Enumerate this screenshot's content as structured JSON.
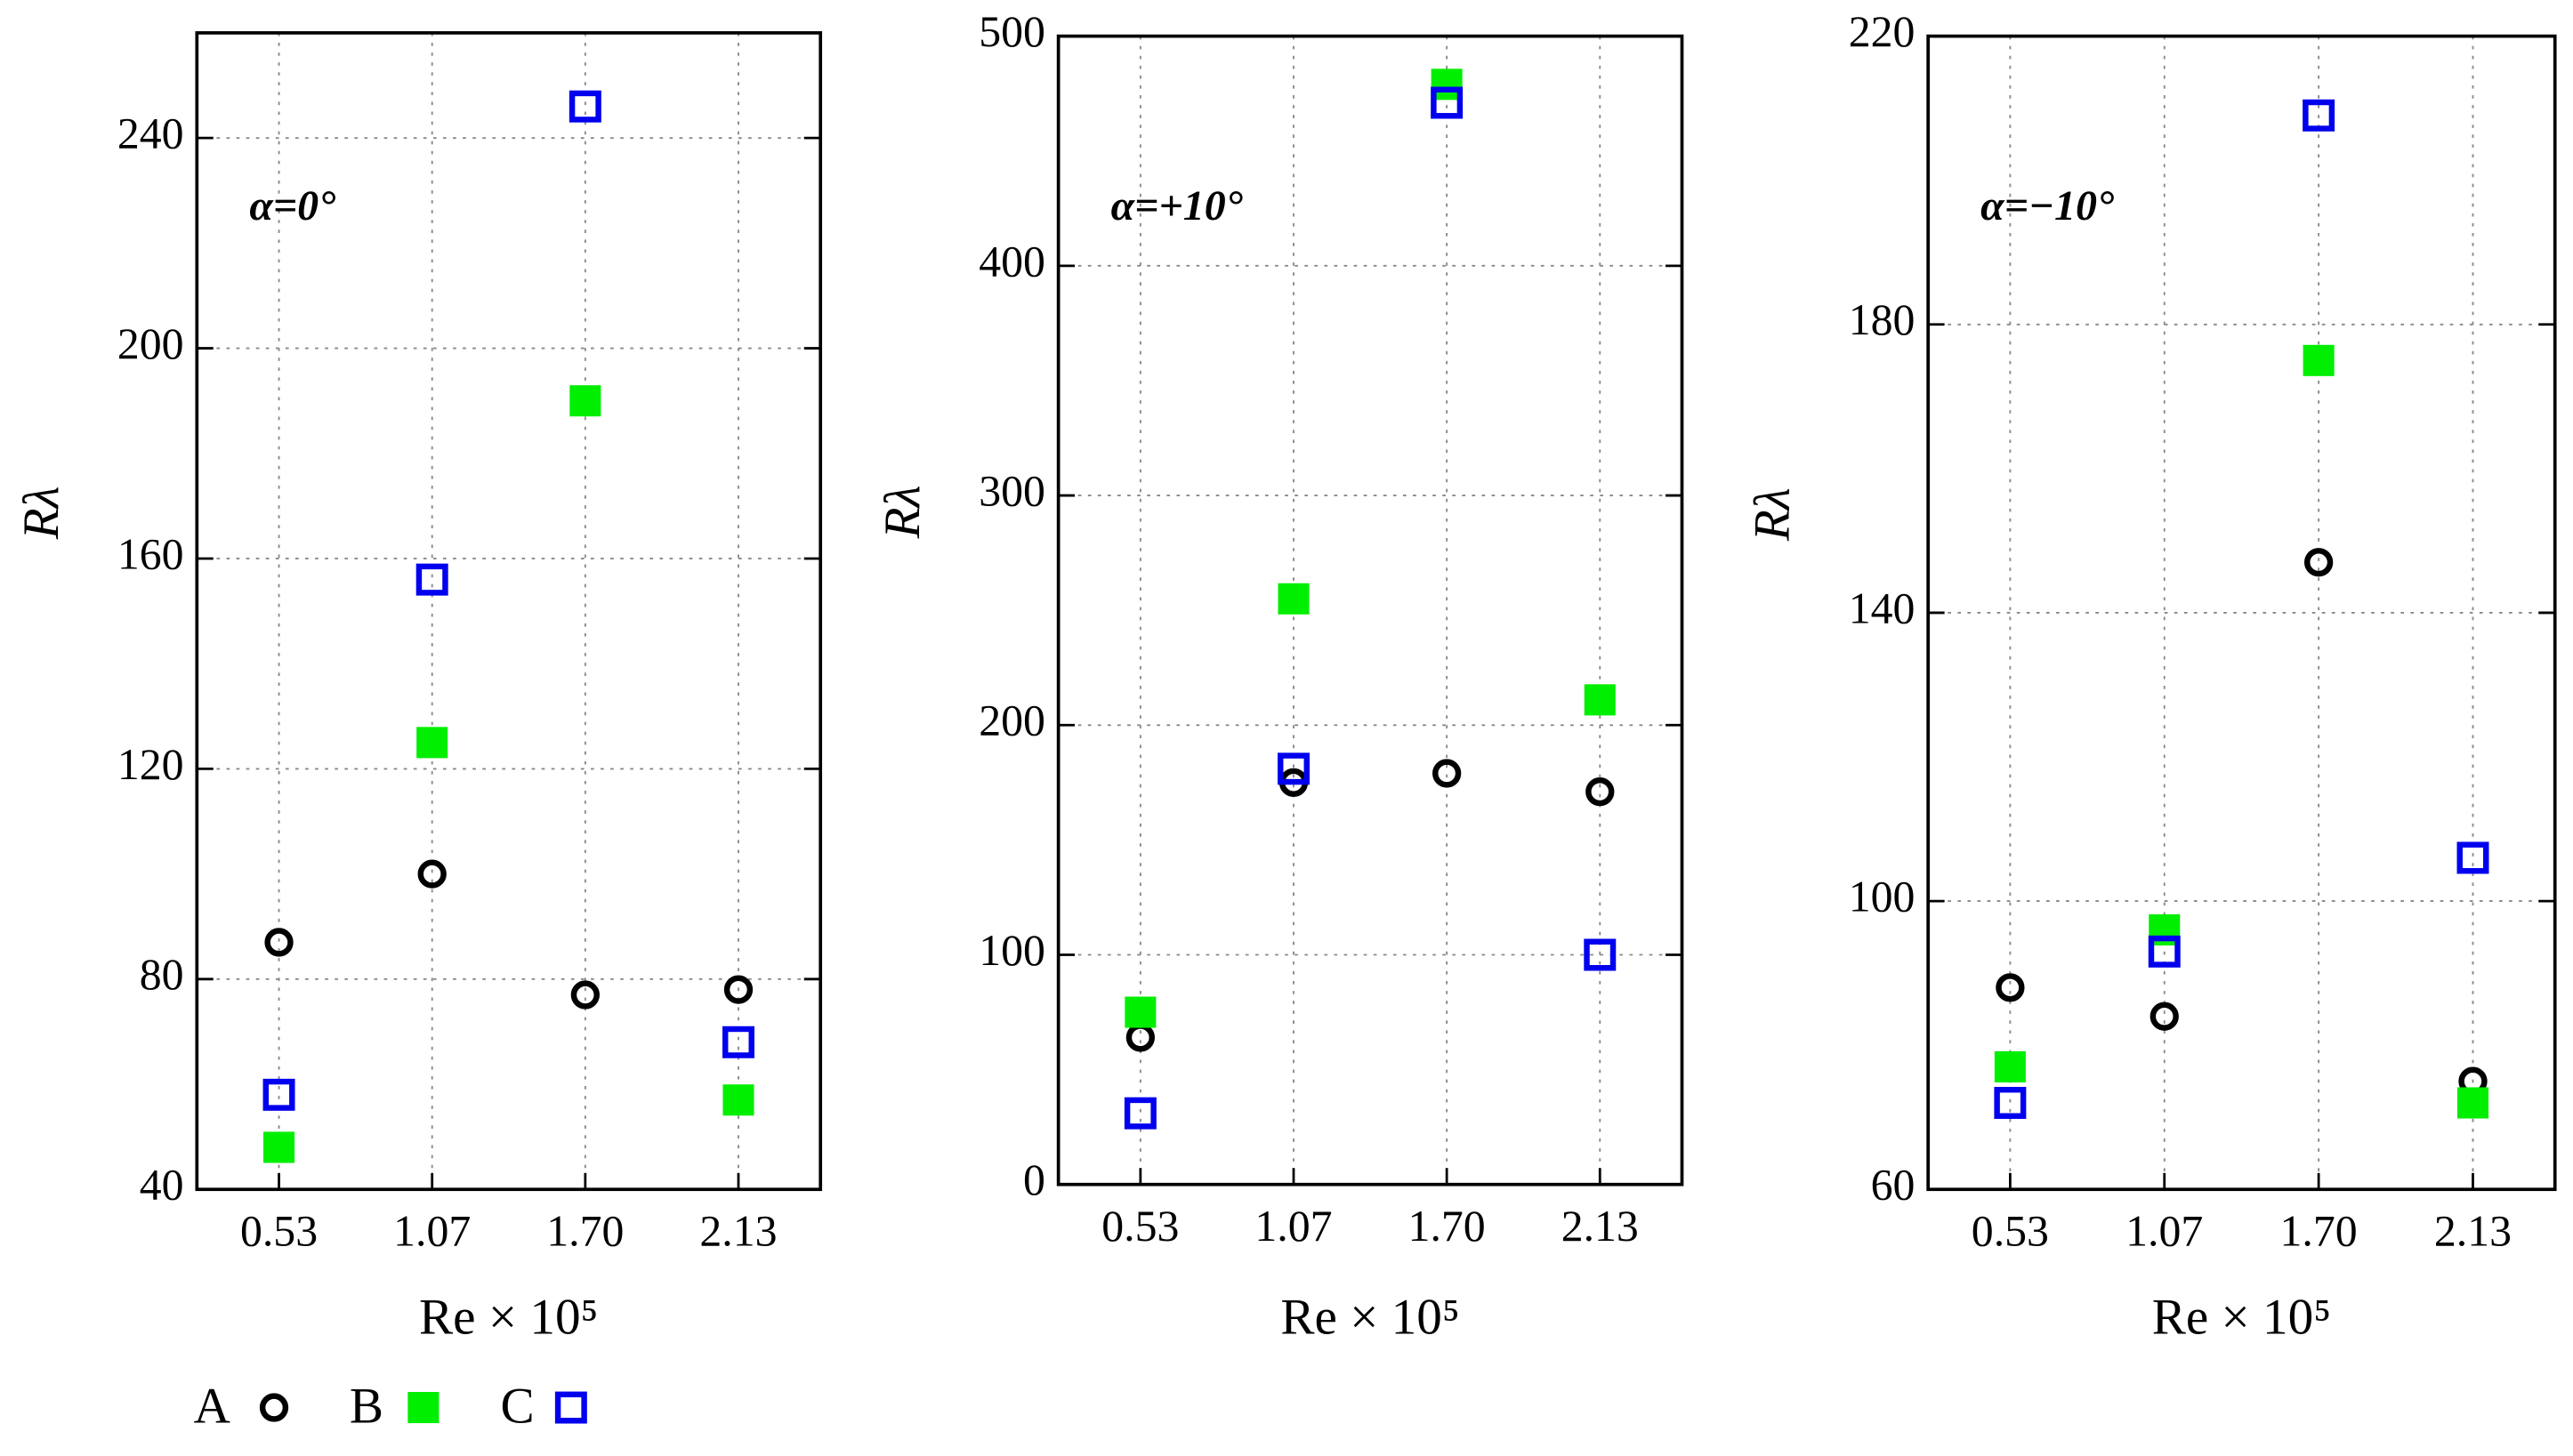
{
  "chart_data": [
    {
      "type": "scatter",
      "annotation": "α=0°",
      "x_label": "Re × 10⁵",
      "y_label": "Rλ",
      "categories": [
        "0.53",
        "1.07",
        "1.70",
        "2.13"
      ],
      "ylim": [
        40,
        260
      ],
      "yticks": [
        40,
        80,
        120,
        160,
        200,
        240
      ],
      "grid": true,
      "series": [
        {
          "name": "A",
          "color": "#000000",
          "marker": "circle-open",
          "values": [
            87,
            100,
            77,
            78
          ]
        },
        {
          "name": "B",
          "color": "#00ee00",
          "marker": "square-filled",
          "values": [
            48,
            125,
            190,
            57
          ]
        },
        {
          "name": "C",
          "color": "#0000ee",
          "marker": "square-open",
          "values": [
            58,
            156,
            246,
            68
          ]
        }
      ]
    },
    {
      "type": "scatter",
      "annotation": "α=+10°",
      "x_label": "Re × 10⁵",
      "y_label": "Rλ",
      "categories": [
        "0.53",
        "1.07",
        "1.70",
        "2.13"
      ],
      "ylim": [
        0,
        500
      ],
      "yticks": [
        0,
        100,
        200,
        300,
        400,
        500
      ],
      "grid": true,
      "series": [
        {
          "name": "A",
          "color": "#000000",
          "marker": "circle-open",
          "values": [
            64,
            175,
            179,
            171
          ]
        },
        {
          "name": "B",
          "color": "#00ee00",
          "marker": "square-filled",
          "values": [
            75,
            255,
            479,
            211
          ]
        },
        {
          "name": "C",
          "color": "#0000ee",
          "marker": "square-open",
          "values": [
            31,
            181,
            471,
            100
          ]
        }
      ]
    },
    {
      "type": "scatter",
      "annotation": "α=−10°",
      "x_label": "Re × 10⁵",
      "y_label": "Rλ",
      "categories": [
        "0.53",
        "1.07",
        "1.70",
        "2.13"
      ],
      "ylim": [
        60,
        220
      ],
      "yticks": [
        60,
        100,
        140,
        180,
        220
      ],
      "grid": true,
      "series": [
        {
          "name": "A",
          "color": "#000000",
          "marker": "circle-open",
          "values": [
            88,
            84,
            147,
            75
          ]
        },
        {
          "name": "B",
          "color": "#00ee00",
          "marker": "square-filled",
          "values": [
            77,
            96,
            175,
            72
          ]
        },
        {
          "name": "C",
          "color": "#0000ee",
          "marker": "square-open",
          "values": [
            72,
            93,
            209,
            106
          ]
        }
      ]
    }
  ]
}
